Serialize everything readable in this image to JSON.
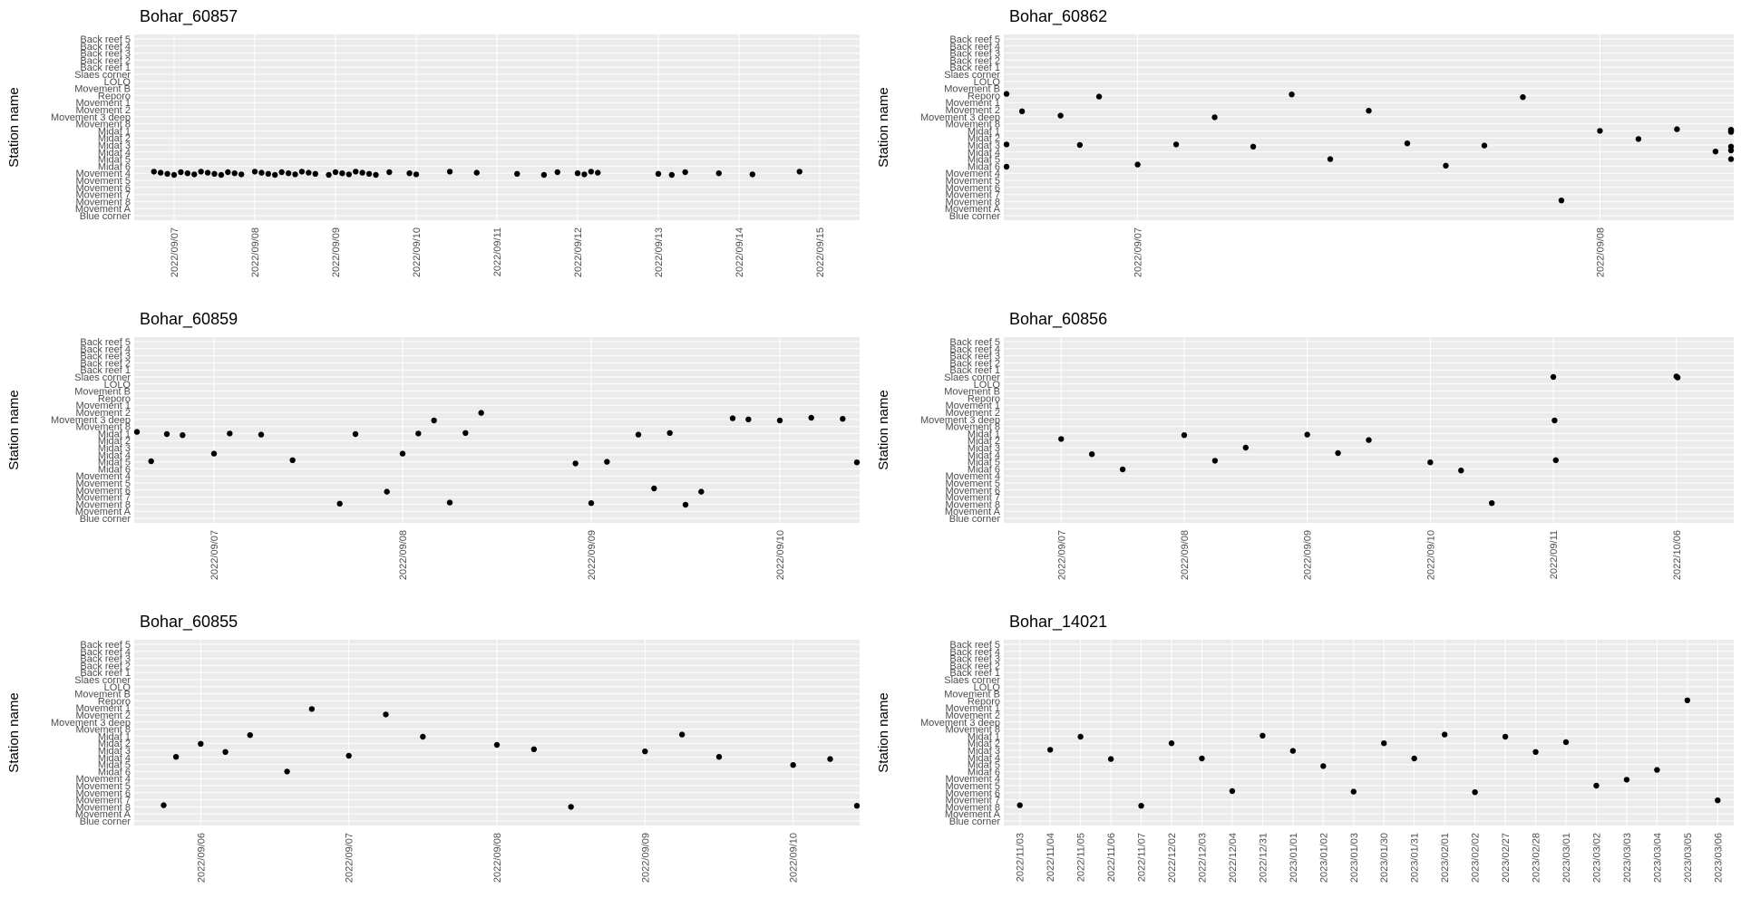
{
  "chart_data": [
    {
      "type": "scatter",
      "title": "Bohar_60857",
      "ylabel": "Station name",
      "xlabel": "",
      "grid": true,
      "background": "#ebebeb",
      "point_color": "#000000",
      "x_ticks": [
        "2022/09/07",
        "2022/09/08",
        "2022/09/09",
        "2022/09/10",
        "2022/09/11",
        "2022/09/12",
        "2022/09/13",
        "2022/09/14",
        "2022/09/15"
      ],
      "points": [
        {
          "x": "2022/09/06 18:00",
          "y": "Movement 4"
        },
        {
          "x": "2022/09/06 20:00",
          "y": "Movement 4"
        },
        {
          "x": "2022/09/06 22:00",
          "y": "Movement 4"
        },
        {
          "x": "2022/09/07 00:00",
          "y": "Movement 4"
        },
        {
          "x": "2022/09/07 02:00",
          "y": "Movement 4"
        },
        {
          "x": "2022/09/07 04:00",
          "y": "Movement 4"
        },
        {
          "x": "2022/09/07 06:00",
          "y": "Movement 4"
        },
        {
          "x": "2022/09/07 08:00",
          "y": "Movement 4"
        },
        {
          "x": "2022/09/07 10:00",
          "y": "Movement 4"
        },
        {
          "x": "2022/09/07 12:00",
          "y": "Movement 4"
        },
        {
          "x": "2022/09/07 14:00",
          "y": "Movement 4"
        },
        {
          "x": "2022/09/07 16:00",
          "y": "Movement 4"
        },
        {
          "x": "2022/09/07 18:00",
          "y": "Movement 4"
        },
        {
          "x": "2022/09/07 20:00",
          "y": "Movement 4"
        },
        {
          "x": "2022/09/08 00:00",
          "y": "Movement 4"
        },
        {
          "x": "2022/09/08 02:00",
          "y": "Movement 4"
        },
        {
          "x": "2022/09/08 04:00",
          "y": "Movement 4"
        },
        {
          "x": "2022/09/08 06:00",
          "y": "Movement 4"
        },
        {
          "x": "2022/09/08 08:00",
          "y": "Movement 4"
        },
        {
          "x": "2022/09/08 10:00",
          "y": "Movement 4"
        },
        {
          "x": "2022/09/08 12:00",
          "y": "Movement 4"
        },
        {
          "x": "2022/09/08 14:00",
          "y": "Movement 4"
        },
        {
          "x": "2022/09/08 16:00",
          "y": "Movement 4"
        },
        {
          "x": "2022/09/08 18:00",
          "y": "Movement 4"
        },
        {
          "x": "2022/09/08 22:00",
          "y": "Movement 4"
        },
        {
          "x": "2022/09/09 00:00",
          "y": "Movement 4"
        },
        {
          "x": "2022/09/09 02:00",
          "y": "Movement 4"
        },
        {
          "x": "2022/09/09 04:00",
          "y": "Movement 4"
        },
        {
          "x": "2022/09/09 06:00",
          "y": "Movement 4"
        },
        {
          "x": "2022/09/09 08:00",
          "y": "Movement 4"
        },
        {
          "x": "2022/09/09 10:00",
          "y": "Movement 4"
        },
        {
          "x": "2022/09/09 12:00",
          "y": "Movement 4"
        },
        {
          "x": "2022/09/09 16:00",
          "y": "Movement 4"
        },
        {
          "x": "2022/09/09 22:00",
          "y": "Movement 4"
        },
        {
          "x": "2022/09/10 00:00",
          "y": "Movement 4"
        },
        {
          "x": "2022/09/10 10:00",
          "y": "Movement 4"
        },
        {
          "x": "2022/09/10 18:00",
          "y": "Movement 4"
        },
        {
          "x": "2022/09/11 06:00",
          "y": "Movement 4"
        },
        {
          "x": "2022/09/11 14:00",
          "y": "Movement 4"
        },
        {
          "x": "2022/09/11 18:00",
          "y": "Movement 4"
        },
        {
          "x": "2022/09/12 00:00",
          "y": "Movement 4"
        },
        {
          "x": "2022/09/12 02:00",
          "y": "Movement 4"
        },
        {
          "x": "2022/09/12 04:00",
          "y": "Movement 4"
        },
        {
          "x": "2022/09/12 06:00",
          "y": "Movement 4"
        },
        {
          "x": "2022/09/13 00:00",
          "y": "Movement 4"
        },
        {
          "x": "2022/09/13 04:00",
          "y": "Movement 4"
        },
        {
          "x": "2022/09/13 08:00",
          "y": "Movement 4"
        },
        {
          "x": "2022/09/13 18:00",
          "y": "Movement 4"
        },
        {
          "x": "2022/09/14 04:00",
          "y": "Movement 4"
        },
        {
          "x": "2022/09/14 18:00",
          "y": "Movement 4"
        }
      ]
    },
    {
      "type": "scatter",
      "title": "Bohar_60862",
      "ylabel": "Station name",
      "xlabel": "",
      "grid": true,
      "background": "#ebebeb",
      "point_color": "#000000",
      "x_ticks": [
        "2022/09/07",
        "2022/09/08"
      ],
      "points": [
        {
          "x": "2022/09/06 14:00",
          "y": "Reporo"
        },
        {
          "x": "2022/09/06 15:00",
          "y": "Midaf 3"
        },
        {
          "x": "2022/09/06 16:00",
          "y": "Midaf 6"
        },
        {
          "x": "2022/09/06 18:00",
          "y": "Movement 2"
        },
        {
          "x": "2022/09/06 20:00",
          "y": "Movement 3 deep"
        },
        {
          "x": "2022/09/06 21:00",
          "y": "Midaf 3"
        },
        {
          "x": "2022/09/06 22:00",
          "y": "Reporo"
        },
        {
          "x": "2022/09/07 00:00",
          "y": "Midaf 6"
        },
        {
          "x": "2022/09/07 02:00",
          "y": "Midaf 3"
        },
        {
          "x": "2022/09/07 04:00",
          "y": "Movement 3 deep"
        },
        {
          "x": "2022/09/07 06:00",
          "y": "Midaf 3"
        },
        {
          "x": "2022/09/07 08:00",
          "y": "Reporo"
        },
        {
          "x": "2022/09/07 10:00",
          "y": "Midaf 5"
        },
        {
          "x": "2022/09/07 12:00",
          "y": "Movement 2"
        },
        {
          "x": "2022/09/07 14:00",
          "y": "Midaf 3"
        },
        {
          "x": "2022/09/07 16:00",
          "y": "Midaf 6"
        },
        {
          "x": "2022/09/07 18:00",
          "y": "Midaf 3"
        },
        {
          "x": "2022/09/07 20:00",
          "y": "Reporo"
        },
        {
          "x": "2022/09/07 22:00",
          "y": "Movement 8"
        },
        {
          "x": "2022/09/08 00:00",
          "y": "Midaf 1"
        },
        {
          "x": "2022/09/08 02:00",
          "y": "Midaf 2"
        },
        {
          "x": "2022/09/08 04:00",
          "y": "Midaf 1"
        },
        {
          "x": "2022/09/08 06:00",
          "y": "Midaf 4"
        },
        {
          "x": "2022/09/08 08:00",
          "y": "Midaf 1"
        },
        {
          "x": "2022/09/08 10:00",
          "y": "Midaf 3"
        },
        {
          "x": "2022/09/08 12:00",
          "y": "Midaf 1"
        },
        {
          "x": "2022/09/08 14:00",
          "y": "Midaf 5"
        },
        {
          "x": "2022/09/08 16:00",
          "y": "Midaf 1"
        },
        {
          "x": "2022/09/08 18:00",
          "y": "Midaf 4"
        },
        {
          "x": "2022/09/08 20:00",
          "y": "Midaf 1"
        }
      ]
    },
    {
      "type": "scatter",
      "title": "Bohar_60859",
      "ylabel": "Station name",
      "xlabel": "",
      "grid": true,
      "background": "#ebebeb",
      "point_color": "#000000",
      "x_ticks": [
        "2022/09/07",
        "2022/09/08",
        "2022/09/09",
        "2022/09/10"
      ],
      "points": [
        {
          "x": "2022/09/06 14:00",
          "y": "Midaf 1"
        },
        {
          "x": "2022/09/06 16:00",
          "y": "Midaf 5"
        },
        {
          "x": "2022/09/06 18:00",
          "y": "Midaf 1"
        },
        {
          "x": "2022/09/06 20:00",
          "y": "Midaf 1"
        },
        {
          "x": "2022/09/07 00:00",
          "y": "Midaf 4"
        },
        {
          "x": "2022/09/07 02:00",
          "y": "Midaf 1"
        },
        {
          "x": "2022/09/07 06:00",
          "y": "Midaf 1"
        },
        {
          "x": "2022/09/07 10:00",
          "y": "Midaf 5"
        },
        {
          "x": "2022/09/07 16:00",
          "y": "Movement 8"
        },
        {
          "x": "2022/09/07 18:00",
          "y": "Midaf 1"
        },
        {
          "x": "2022/09/07 22:00",
          "y": "Movement 6"
        },
        {
          "x": "2022/09/08 00:00",
          "y": "Midaf 4"
        },
        {
          "x": "2022/09/08 02:00",
          "y": "Midaf 1"
        },
        {
          "x": "2022/09/08 04:00",
          "y": "Movement 3 deep"
        },
        {
          "x": "2022/09/08 06:00",
          "y": "Movement 8"
        },
        {
          "x": "2022/09/08 08:00",
          "y": "Midaf 1"
        },
        {
          "x": "2022/09/08 10:00",
          "y": "Movement 2"
        },
        {
          "x": "2022/09/08 22:00",
          "y": "Midaf 5"
        },
        {
          "x": "2022/09/09 00:00",
          "y": "Movement 8"
        },
        {
          "x": "2022/09/09 02:00",
          "y": "Midaf 5"
        },
        {
          "x": "2022/09/09 06:00",
          "y": "Midaf 1"
        },
        {
          "x": "2022/09/09 08:00",
          "y": "Movement 6"
        },
        {
          "x": "2022/09/09 10:00",
          "y": "Midaf 1"
        },
        {
          "x": "2022/09/09 12:00",
          "y": "Movement 8"
        },
        {
          "x": "2022/09/09 14:00",
          "y": "Movement 6"
        },
        {
          "x": "2022/09/09 18:00",
          "y": "Movement 3 deep"
        },
        {
          "x": "2022/09/09 20:00",
          "y": "Movement 3 deep"
        },
        {
          "x": "2022/09/10 00:00",
          "y": "Movement 3 deep"
        },
        {
          "x": "2022/09/10 04:00",
          "y": "Movement 3 deep"
        },
        {
          "x": "2022/09/10 08:00",
          "y": "Movement 3 deep"
        },
        {
          "x": "2022/09/10 10:00",
          "y": "Midaf 5"
        }
      ]
    },
    {
      "type": "scatter",
      "title": "Bohar_60856",
      "ylabel": "Station name",
      "xlabel": "",
      "grid": true,
      "background": "#ebebeb",
      "point_color": "#000000",
      "x_ticks": [
        "2022/09/07",
        "2022/09/08",
        "2022/09/09",
        "2022/09/10",
        "2022/09/11",
        "2022/10/06"
      ],
      "points": [
        {
          "x": "2022/09/07 00:00",
          "y": "Midaf 2"
        },
        {
          "x": "2022/09/07 06:00",
          "y": "Midaf 4"
        },
        {
          "x": "2022/09/07 12:00",
          "y": "Midaf 6"
        },
        {
          "x": "2022/09/08 00:00",
          "y": "Midaf 1"
        },
        {
          "x": "2022/09/08 06:00",
          "y": "Midaf 5"
        },
        {
          "x": "2022/09/08 12:00",
          "y": "Midaf 3"
        },
        {
          "x": "2022/09/09 00:00",
          "y": "Midaf 1"
        },
        {
          "x": "2022/09/09 06:00",
          "y": "Midaf 4"
        },
        {
          "x": "2022/09/09 12:00",
          "y": "Midaf 2"
        },
        {
          "x": "2022/09/10 00:00",
          "y": "Midaf 5"
        },
        {
          "x": "2022/09/10 06:00",
          "y": "Midaf 6"
        },
        {
          "x": "2022/09/10 12:00",
          "y": "Movement 8"
        },
        {
          "x": "2022/09/11 00:00",
          "y": "Slaes corner"
        },
        {
          "x": "2022/09/11 06:00",
          "y": "Movement 3 deep"
        },
        {
          "x": "2022/09/11 12:00",
          "y": "Midaf 5"
        },
        {
          "x": "2022/10/06 00:00",
          "y": "Slaes corner"
        },
        {
          "x": "2022/10/06 06:00",
          "y": "Slaes corner"
        }
      ]
    },
    {
      "type": "scatter",
      "title": "Bohar_60855",
      "ylabel": "Station name",
      "xlabel": "",
      "grid": true,
      "background": "#ebebeb",
      "point_color": "#000000",
      "x_ticks": [
        "2022/09/06",
        "2022/09/07",
        "2022/09/08",
        "2022/09/09",
        "2022/09/10"
      ],
      "points": [
        {
          "x": "2022/09/05 18:00",
          "y": "Movement 8"
        },
        {
          "x": "2022/09/05 20:00",
          "y": "Midaf 4"
        },
        {
          "x": "2022/09/06 00:00",
          "y": "Midaf 2"
        },
        {
          "x": "2022/09/06 04:00",
          "y": "Midaf 3"
        },
        {
          "x": "2022/09/06 08:00",
          "y": "Midaf 1"
        },
        {
          "x": "2022/09/06 14:00",
          "y": "Midaf 6"
        },
        {
          "x": "2022/09/06 18:00",
          "y": "Movement 1"
        },
        {
          "x": "2022/09/07 00:00",
          "y": "Midaf 4"
        },
        {
          "x": "2022/09/07 06:00",
          "y": "Movement 2"
        },
        {
          "x": "2022/09/07 12:00",
          "y": "Midaf 1"
        },
        {
          "x": "2022/09/08 00:00",
          "y": "Midaf 2"
        },
        {
          "x": "2022/09/08 06:00",
          "y": "Midaf 3"
        },
        {
          "x": "2022/09/08 12:00",
          "y": "Movement 8"
        },
        {
          "x": "2022/09/09 00:00",
          "y": "Midaf 3"
        },
        {
          "x": "2022/09/09 06:00",
          "y": "Midaf 1"
        },
        {
          "x": "2022/09/09 12:00",
          "y": "Midaf 4"
        },
        {
          "x": "2022/09/10 00:00",
          "y": "Midaf 5"
        },
        {
          "x": "2022/09/10 06:00",
          "y": "Midaf 4"
        },
        {
          "x": "2022/09/10 12:00",
          "y": "Movement 8"
        }
      ]
    },
    {
      "type": "scatter",
      "title": "Bohar_14021",
      "ylabel": "Station name",
      "xlabel": "",
      "grid": true,
      "background": "#ebebeb",
      "point_color": "#000000",
      "x_ticks": [
        "2022/11/03",
        "2022/11/04",
        "2022/11/05",
        "2022/11/06",
        "2022/11/07",
        "2022/12/02",
        "2022/12/03",
        "2022/12/04",
        "2022/12/31",
        "2023/01/01",
        "2023/01/02",
        "2023/01/03",
        "2023/01/30",
        "2023/01/31",
        "2023/02/01",
        "2023/02/02",
        "2023/02/27",
        "2023/02/28",
        "2023/03/01",
        "2023/03/02",
        "2023/03/03",
        "2023/03/04",
        "2023/03/05",
        "2023/03/06"
      ],
      "points": [
        {
          "x": "2022/11/03",
          "y": "Movement 8"
        },
        {
          "x": "2022/11/04",
          "y": "Midaf 3"
        },
        {
          "x": "2022/11/05",
          "y": "Midaf 1"
        },
        {
          "x": "2022/11/06",
          "y": "Midaf 4"
        },
        {
          "x": "2022/11/07",
          "y": "Movement 8"
        },
        {
          "x": "2022/12/02",
          "y": "Midaf 2"
        },
        {
          "x": "2022/12/03",
          "y": "Midaf 4"
        },
        {
          "x": "2022/12/04",
          "y": "Movement 6"
        },
        {
          "x": "2022/12/31",
          "y": "Midaf 1"
        },
        {
          "x": "2023/01/01",
          "y": "Midaf 3"
        },
        {
          "x": "2023/01/02",
          "y": "Midaf 5"
        },
        {
          "x": "2023/01/03",
          "y": "Movement 6"
        },
        {
          "x": "2023/01/30",
          "y": "Midaf 2"
        },
        {
          "x": "2023/01/31",
          "y": "Midaf 4"
        },
        {
          "x": "2023/02/01",
          "y": "Midaf 1"
        },
        {
          "x": "2023/02/02",
          "y": "Movement 6"
        },
        {
          "x": "2023/02/27",
          "y": "Midaf 1"
        },
        {
          "x": "2023/02/28",
          "y": "Midaf 3"
        },
        {
          "x": "2023/03/01",
          "y": "Midaf 2"
        },
        {
          "x": "2023/03/02",
          "y": "Movement 5"
        },
        {
          "x": "2023/03/03",
          "y": "Movement 4"
        },
        {
          "x": "2023/03/04",
          "y": "Midaf 6"
        },
        {
          "x": "2023/03/05",
          "y": "Reporo"
        },
        {
          "x": "2023/03/06",
          "y": "Movement 7"
        }
      ]
    }
  ],
  "y_categories": [
    "Blue corner",
    "Movement A",
    "Movement 8",
    "Movement 7",
    "Movement 6",
    "Movement 5",
    "Movement 4",
    "Midaf 6",
    "Midaf 5",
    "Midaf 4",
    "Midaf 3",
    "Midaf 2",
    "Midaf 1",
    "Movement 8",
    "Movement 3 deep",
    "Movement 2",
    "Movement 1",
    "Reporo",
    "Movement B",
    "LOLO",
    "Slaes corner",
    "Back reef 1",
    "Back reef 2",
    "Back reef 3",
    "Back reef 4",
    "Back reef 5"
  ]
}
